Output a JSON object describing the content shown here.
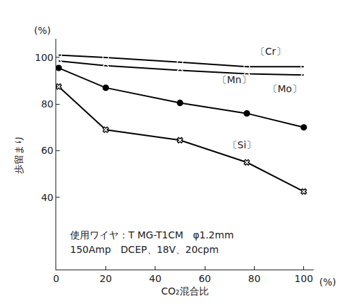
{
  "chart_data": {
    "type": "line",
    "xlabel": "CO₂混合比",
    "ylabel": "歩留まり",
    "x_unit": "(%)",
    "y_unit": "(%)",
    "annotations": [
      "使用ワイヤ：T MG-T1CM　φ1.2mm",
      "150Amp　DCEP、18V、20cpm"
    ],
    "x": [
      1,
      20,
      50,
      77,
      100
    ],
    "series": [
      {
        "name": "〔Cr〕",
        "color": "#000000",
        "marker": "circle-open",
        "values": [
          101,
          100,
          98,
          96,
          96
        ]
      },
      {
        "name": "〔Mo〕",
        "color": "#000000",
        "marker": "triangle-up-open",
        "values": [
          98.5,
          96.5,
          94.5,
          93,
          92.5
        ]
      },
      {
        "name": "〔Mn〕",
        "color": "#000000",
        "marker": "circle",
        "values": [
          95.5,
          87,
          80.5,
          76,
          70
        ]
      },
      {
        "name": "〔Si〕",
        "color": "#000000",
        "marker": "x",
        "values": [
          87.5,
          69,
          64.5,
          55,
          42.5
        ]
      }
    ],
    "xlim": [
      0,
      104
    ],
    "ylim": [
      9,
      108
    ],
    "xticks": [
      0,
      20,
      40,
      60,
      80,
      100
    ],
    "yticks": [
      40,
      60,
      80,
      100
    ],
    "grid": false
  }
}
